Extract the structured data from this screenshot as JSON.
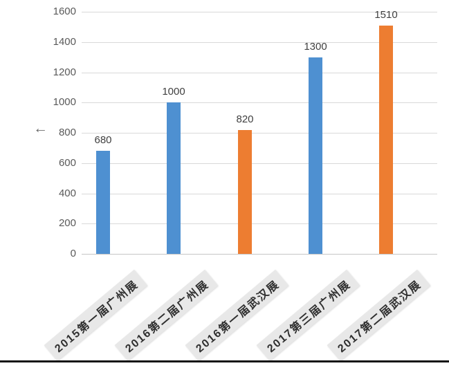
{
  "chart_data": {
    "type": "bar",
    "title": "",
    "xlabel": "",
    "ylabel": "",
    "categories": [
      "2015第一届广州展",
      "2016第二届广州展",
      "2016第一届武汉展",
      "2017第三届广州展",
      "2017第二届武汉展"
    ],
    "values": [
      680,
      1000,
      820,
      1300,
      1510
    ],
    "value_labels": [
      "680",
      "1000",
      "820",
      "1300",
      "1510"
    ],
    "bar_colors": [
      "#4E90D1",
      "#4E90D1",
      "#ED7D31",
      "#4E90D1",
      "#ED7D31"
    ],
    "ylim": [
      0,
      1600
    ],
    "yticks": [
      0,
      200,
      400,
      600,
      800,
      1000,
      1200,
      1400,
      1600
    ],
    "grid": true,
    "legend_position": "none",
    "colors": {
      "series_blue": "#4E90D1",
      "series_orange": "#ED7D31",
      "gridline": "#D9D9D9",
      "tick_text": "#595959",
      "value_text": "#404040",
      "xlabel_text": "#2F2F2F",
      "xlabel_background": "#E8E8E8",
      "bottom_rule": "#111111"
    }
  },
  "icons": {
    "y_axis_marker": "←"
  }
}
